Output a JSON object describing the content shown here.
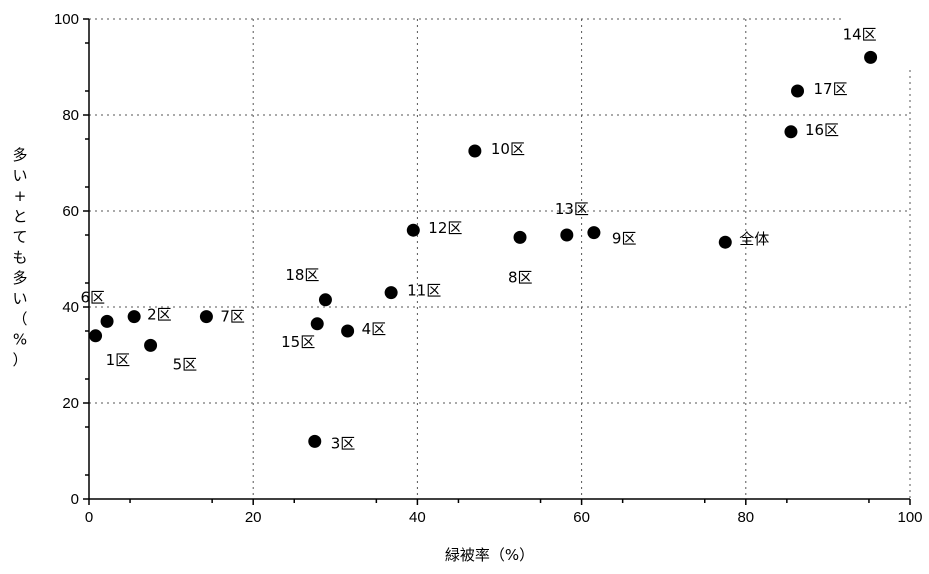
{
  "chart_data": {
    "type": "scatter",
    "title": "",
    "xlabel": "緑被率（%）",
    "ylabel": "多い+とても多い（%）",
    "xlim": [
      0,
      100
    ],
    "ylim": [
      0,
      100
    ],
    "xticks": [
      0,
      20,
      40,
      60,
      80,
      100
    ],
    "yticks": [
      0,
      20,
      40,
      60,
      80,
      100
    ],
    "grid": true,
    "points": [
      {
        "label": "1区",
        "x": 0.8,
        "y": 34
      },
      {
        "label": "2区",
        "x": 5.5,
        "y": 38
      },
      {
        "label": "3区",
        "x": 27.5,
        "y": 12
      },
      {
        "label": "4区",
        "x": 31.5,
        "y": 35
      },
      {
        "label": "5区",
        "x": 7.5,
        "y": 32
      },
      {
        "label": "6区",
        "x": 2.2,
        "y": 37
      },
      {
        "label": "7区",
        "x": 14.3,
        "y": 38
      },
      {
        "label": "8区",
        "x": 52.5,
        "y": 54.5
      },
      {
        "label": "9区",
        "x": 61.5,
        "y": 55.5
      },
      {
        "label": "10区",
        "x": 47,
        "y": 72.5
      },
      {
        "label": "11区",
        "x": 36.8,
        "y": 43
      },
      {
        "label": "12区",
        "x": 39.5,
        "y": 56
      },
      {
        "label": "13区",
        "x": 58.2,
        "y": 55
      },
      {
        "label": "14区",
        "x": 95.2,
        "y": 92
      },
      {
        "label": "15区",
        "x": 27.8,
        "y": 36.5
      },
      {
        "label": "16区",
        "x": 85.5,
        "y": 76.5
      },
      {
        "label": "17区",
        "x": 86.3,
        "y": 85
      },
      {
        "label": "18区",
        "x": 28.8,
        "y": 41.5
      },
      {
        "label": "全体",
        "x": 77.5,
        "y": 53.5
      }
    ]
  }
}
